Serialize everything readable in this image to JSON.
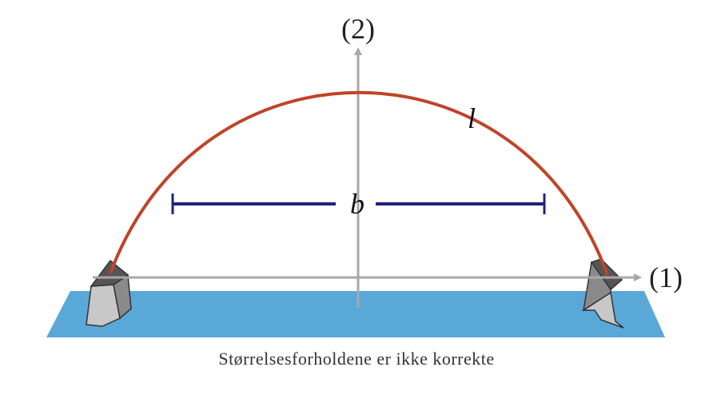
{
  "labels": {
    "axis_vertical": "(2)",
    "axis_horizontal": "(1)",
    "curve": "l",
    "width": "b"
  },
  "caption": "Størrelsesforholdene er ikke korrekte",
  "colors": {
    "water": "#5aa8d8",
    "curve": "#c0432a",
    "span": "#1f237a",
    "axis": "#a8a8a8",
    "support_dark": "#555555",
    "support_light": "#bdbdbd"
  }
}
